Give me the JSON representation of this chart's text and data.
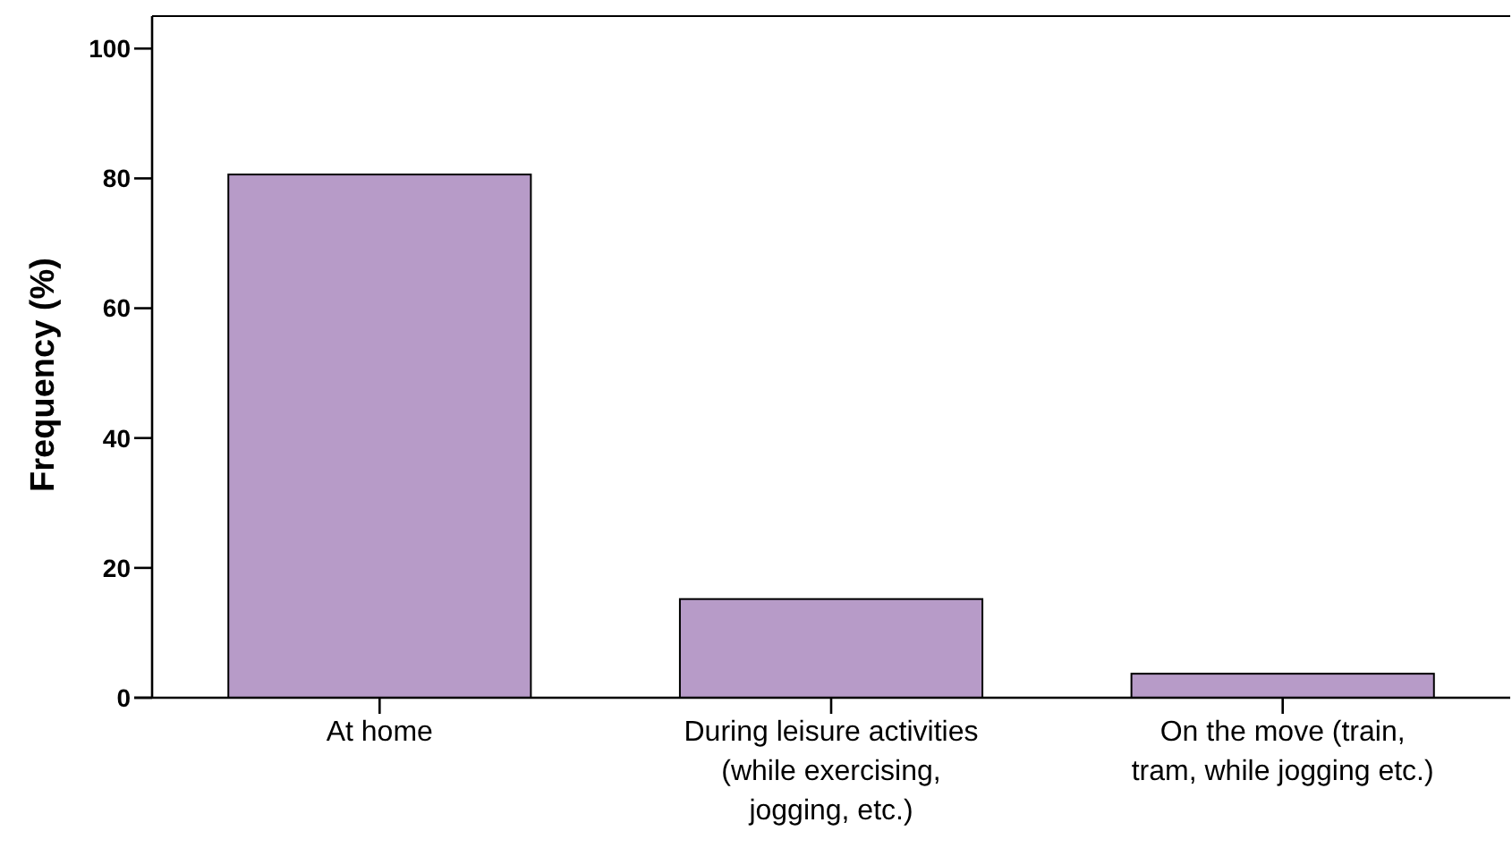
{
  "chart_data": {
    "type": "bar",
    "ylabel": "Frequency (%)",
    "categories": [
      "At home",
      "During leisure activities\n(while exercising,\njogging, etc.)",
      "On the move (train,\ntram, while jogging etc.)"
    ],
    "values": [
      80.6,
      15.2,
      3.7
    ],
    "color": "#b79bc8",
    "ylim": [
      0,
      105
    ],
    "yticks": [
      0,
      20,
      40,
      60,
      80,
      100
    ],
    "grid": false
  }
}
